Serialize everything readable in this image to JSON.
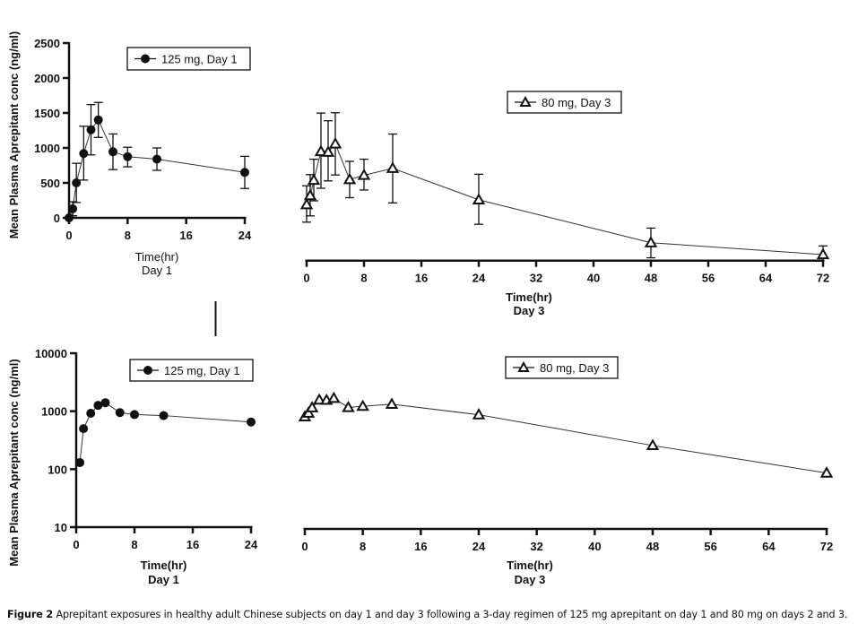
{
  "caption": {
    "label": "Figure 2",
    "text": "Aprepitant exposures in healthy adult Chinese subjects on day 1 and day 3 following a 3-day regimen of 125 mg aprepitant on day 1 and 80 mg on days 2 and 3."
  },
  "colors": {
    "ink": "#111111",
    "line": "#333333",
    "background": "#ffffff"
  },
  "chart_data": [
    {
      "id": "linear-day1",
      "type": "line",
      "scale": "linear",
      "ylabel": "Mean Plasma Aprepitant conc (ng/ml)",
      "xlabel": "Time(hr)",
      "xsublabel": "Day 1",
      "xlim": [
        0,
        24
      ],
      "ylim": [
        0,
        2500
      ],
      "xticks": [
        0,
        8,
        16,
        24
      ],
      "yticks": [
        0,
        500,
        1000,
        1500,
        2000,
        2500
      ],
      "legend": {
        "label": "125 mg, Day 1",
        "marker": "filled-circle",
        "position": "top-right"
      },
      "series": [
        {
          "name": "125 mg, Day 1",
          "x": [
            0,
            0.5,
            1,
            2,
            3,
            4,
            6,
            8,
            12,
            24
          ],
          "y": [
            0,
            130,
            500,
            920,
            1260,
            1400,
            945,
            875,
            840,
            650
          ],
          "err_low": [
            0,
            30,
            220,
            540,
            900,
            1150,
            690,
            730,
            680,
            420
          ],
          "err_high": [
            0,
            230,
            780,
            1310,
            1620,
            1650,
            1200,
            1010,
            1000,
            880
          ]
        }
      ]
    },
    {
      "id": "linear-day3",
      "type": "line",
      "scale": "linear",
      "xlabel": "Time(hr)",
      "xsublabel": "Day 3",
      "xlim": [
        0,
        72
      ],
      "ylim": [
        0,
        2500
      ],
      "xticks": [
        0,
        8,
        16,
        24,
        32,
        40,
        48,
        56,
        64,
        72
      ],
      "legend": {
        "label": "80 mg, Day 3",
        "marker": "open-triangle",
        "position": "top-center"
      },
      "series": [
        {
          "name": "80 mg, Day 3",
          "x": [
            0,
            0.5,
            1,
            2,
            3,
            4,
            6,
            8,
            12,
            24,
            48,
            72
          ],
          "y": [
            800,
            930,
            1150,
            1560,
            1550,
            1670,
            1160,
            1220,
            1320,
            870,
            256,
            86
          ],
          "err_low": [
            550,
            640,
            855,
            1035,
            1140,
            1225,
            900,
            1010,
            825,
            520,
            40,
            0
          ],
          "err_high": [
            1070,
            1230,
            1450,
            2110,
            2000,
            2115,
            1420,
            1450,
            1810,
            1235,
            465,
            210
          ]
        }
      ]
    },
    {
      "id": "log-day1",
      "type": "line",
      "scale": "log",
      "ylabel": "Mean Plasma Aprepitant conc (ng/ml)",
      "xlabel": "Time(hr)",
      "xsublabel": "Day 1",
      "xlim": [
        0,
        24
      ],
      "ylim": [
        10,
        10000
      ],
      "xticks": [
        0,
        8,
        16,
        24
      ],
      "yticks": [
        10,
        100,
        1000,
        10000
      ],
      "legend": {
        "label": "125 mg, Day 1",
        "marker": "filled-circle",
        "position": "top-right"
      },
      "series": [
        {
          "name": "125 mg, Day 1",
          "x": [
            0.5,
            1,
            2,
            3,
            4,
            6,
            8,
            12,
            24
          ],
          "y": [
            130,
            500,
            920,
            1260,
            1400,
            945,
            875,
            840,
            650
          ]
        }
      ]
    },
    {
      "id": "log-day3",
      "type": "line",
      "scale": "log",
      "xlabel": "Time(hr)",
      "xsublabel": "Day 3",
      "xlim": [
        0,
        72
      ],
      "ylim": [
        10,
        10000
      ],
      "xticks": [
        0,
        8,
        16,
        24,
        32,
        40,
        48,
        56,
        64,
        72
      ],
      "legend": {
        "label": "80 mg, Day 3",
        "marker": "open-triangle",
        "position": "top-center"
      },
      "series": [
        {
          "name": "80 mg, Day 3",
          "x": [
            0,
            0.5,
            1,
            2,
            3,
            4,
            6,
            8,
            12,
            24,
            48,
            72
          ],
          "y": [
            800,
            930,
            1150,
            1560,
            1550,
            1670,
            1160,
            1220,
            1320,
            870,
            256,
            86
          ]
        }
      ]
    }
  ]
}
